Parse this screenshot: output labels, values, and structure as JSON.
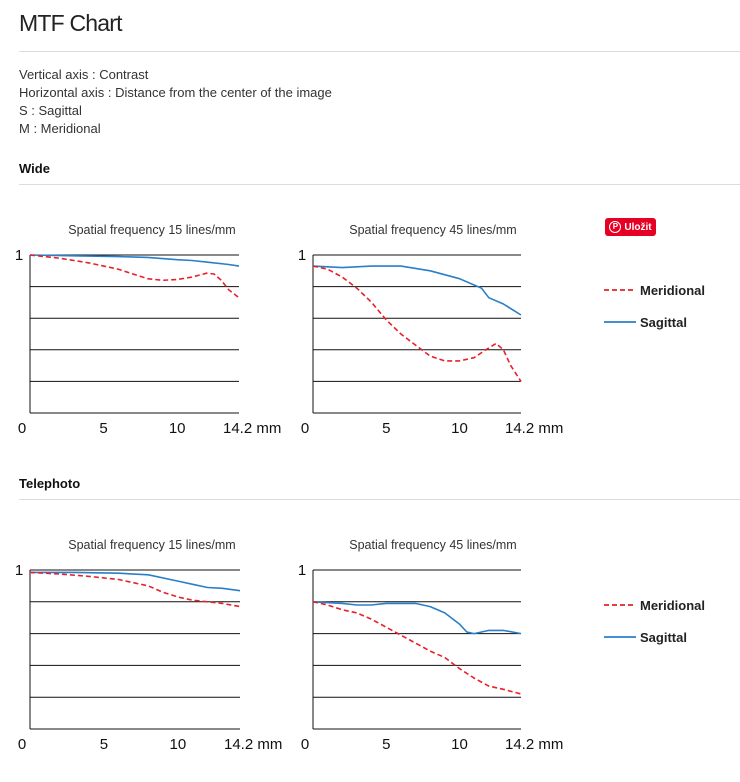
{
  "page": {
    "title": "MTF Chart",
    "description": [
      "Vertical axis : Contrast",
      "Horizontal axis : Distance from the center of the image",
      "S : Sagittal",
      "M : Meridional"
    ],
    "pin_button": "Uložit",
    "colors": {
      "meridional": "#e8202a",
      "sagittal": "#2a7fc8",
      "pin": "#e60023"
    }
  },
  "sections": [
    {
      "label": "Wide"
    },
    {
      "label": "Telephoto"
    }
  ],
  "legend": [
    {
      "name": "Meridional",
      "style": "dashed",
      "color": "#e8202a"
    },
    {
      "name": "Sagittal",
      "style": "solid",
      "color": "#2a7fc8"
    }
  ],
  "chart_data": [
    {
      "type": "line",
      "group": "Wide",
      "title": "Spatial frequency 15 lines/mm",
      "xlim": [
        0,
        14.2
      ],
      "ylim": [
        0,
        1
      ],
      "grid": true,
      "x_ticks": [
        "0",
        "5",
        "10",
        "14.2 mm"
      ],
      "y_ticks": [
        "1"
      ],
      "series": [
        {
          "name": "Sagittal",
          "points": [
            [
              0,
              1.0
            ],
            [
              3,
              0.995
            ],
            [
              6,
              0.99
            ],
            [
              8,
              0.985
            ],
            [
              10,
              0.97
            ],
            [
              11,
              0.965
            ],
            [
              12,
              0.955
            ],
            [
              13.5,
              0.94
            ],
            [
              14.2,
              0.93
            ]
          ]
        },
        {
          "name": "Meridional",
          "points": [
            [
              0,
              1.0
            ],
            [
              2,
              0.98
            ],
            [
              4,
              0.95
            ],
            [
              6,
              0.91
            ],
            [
              7,
              0.88
            ],
            [
              8,
              0.85
            ],
            [
              9,
              0.84
            ],
            [
              10,
              0.845
            ],
            [
              11,
              0.86
            ],
            [
              12,
              0.885
            ],
            [
              12.5,
              0.88
            ],
            [
              13,
              0.84
            ],
            [
              13.5,
              0.78
            ],
            [
              14.2,
              0.73
            ]
          ]
        }
      ]
    },
    {
      "type": "line",
      "group": "Wide",
      "title": "Spatial frequency 45 lines/mm",
      "xlim": [
        0,
        14.2
      ],
      "ylim": [
        0,
        1
      ],
      "grid": true,
      "x_ticks": [
        "0",
        "5",
        "10",
        "14.2 mm"
      ],
      "y_ticks": [
        "1"
      ],
      "series": [
        {
          "name": "Sagittal",
          "points": [
            [
              0,
              0.93
            ],
            [
              2,
              0.92
            ],
            [
              4,
              0.93
            ],
            [
              6,
              0.93
            ],
            [
              8,
              0.9
            ],
            [
              10,
              0.85
            ],
            [
              11,
              0.81
            ],
            [
              11.5,
              0.79
            ],
            [
              12,
              0.73
            ],
            [
              13,
              0.69
            ],
            [
              14.2,
              0.62
            ]
          ]
        },
        {
          "name": "Meridional",
          "points": [
            [
              0,
              0.93
            ],
            [
              1,
              0.91
            ],
            [
              2,
              0.86
            ],
            [
              3,
              0.79
            ],
            [
              4,
              0.7
            ],
            [
              5,
              0.59
            ],
            [
              6,
              0.5
            ],
            [
              7,
              0.43
            ],
            [
              8,
              0.36
            ],
            [
              9,
              0.33
            ],
            [
              10,
              0.33
            ],
            [
              11,
              0.35
            ],
            [
              11.8,
              0.4
            ],
            [
              12.5,
              0.44
            ],
            [
              13,
              0.4
            ],
            [
              13.5,
              0.3
            ],
            [
              14.2,
              0.2
            ]
          ]
        }
      ]
    },
    {
      "type": "line",
      "group": "Telephoto",
      "title": "Spatial frequency 15 lines/mm",
      "xlim": [
        0,
        14.2
      ],
      "ylim": [
        0,
        1
      ],
      "grid": true,
      "x_ticks": [
        "0",
        "5",
        "10",
        "14.2 mm"
      ],
      "y_ticks": [
        "1"
      ],
      "series": [
        {
          "name": "Sagittal",
          "points": [
            [
              0,
              0.985
            ],
            [
              3,
              0.985
            ],
            [
              6,
              0.98
            ],
            [
              8,
              0.97
            ],
            [
              10,
              0.93
            ],
            [
              11,
              0.91
            ],
            [
              12,
              0.89
            ],
            [
              13,
              0.885
            ],
            [
              14.2,
              0.87
            ]
          ]
        },
        {
          "name": "Meridional",
          "points": [
            [
              0,
              0.985
            ],
            [
              2,
              0.975
            ],
            [
              4,
              0.96
            ],
            [
              6,
              0.94
            ],
            [
              8,
              0.9
            ],
            [
              9,
              0.86
            ],
            [
              10,
              0.83
            ],
            [
              11,
              0.81
            ],
            [
              12,
              0.8
            ],
            [
              13,
              0.79
            ],
            [
              14.2,
              0.77
            ]
          ]
        }
      ]
    },
    {
      "type": "line",
      "group": "Telephoto",
      "title": "Spatial frequency 45 lines/mm",
      "xlim": [
        0,
        14.2
      ],
      "ylim": [
        0,
        1
      ],
      "grid": true,
      "x_ticks": [
        "0",
        "5",
        "10",
        "14.2 mm"
      ],
      "y_ticks": [
        "1"
      ],
      "series": [
        {
          "name": "Sagittal",
          "points": [
            [
              0,
              0.8
            ],
            [
              2,
              0.79
            ],
            [
              3,
              0.78
            ],
            [
              4,
              0.78
            ],
            [
              5,
              0.79
            ],
            [
              6,
              0.79
            ],
            [
              7,
              0.79
            ],
            [
              8,
              0.77
            ],
            [
              9,
              0.73
            ],
            [
              10,
              0.66
            ],
            [
              10.5,
              0.61
            ],
            [
              11,
              0.6
            ],
            [
              11.5,
              0.61
            ],
            [
              12,
              0.62
            ],
            [
              13,
              0.62
            ],
            [
              14.2,
              0.6
            ]
          ]
        },
        {
          "name": "Meridional",
          "points": [
            [
              0,
              0.8
            ],
            [
              1,
              0.78
            ],
            [
              2,
              0.75
            ],
            [
              3,
              0.73
            ],
            [
              4,
              0.69
            ],
            [
              5,
              0.64
            ],
            [
              6,
              0.59
            ],
            [
              7,
              0.54
            ],
            [
              8,
              0.49
            ],
            [
              9,
              0.45
            ],
            [
              10,
              0.38
            ],
            [
              11,
              0.32
            ],
            [
              12,
              0.27
            ],
            [
              13,
              0.25
            ],
            [
              14.2,
              0.22
            ]
          ]
        }
      ]
    }
  ]
}
